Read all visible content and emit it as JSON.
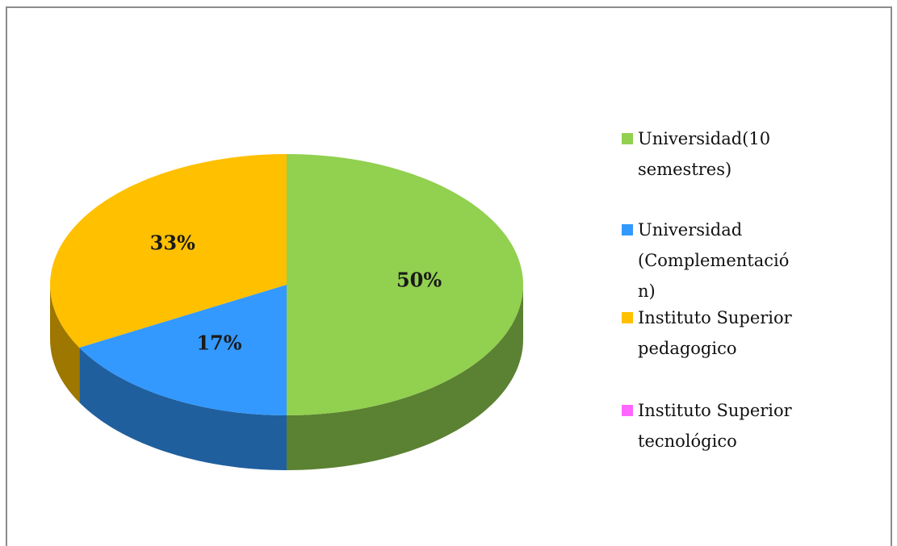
{
  "chart_data": {
    "type": "pie3d",
    "categories": [
      "Universidad(10 semestres)",
      "Universidad (Complementación)",
      "Instituto Superior pedagogico",
      "Instituto Superior tecnológico"
    ],
    "values": [
      50,
      17,
      33,
      0
    ],
    "value_labels": [
      "50%",
      "17%",
      "33%",
      null
    ],
    "colors": [
      "#92d050",
      "#3399ff",
      "#ffc000",
      "#ff66ff"
    ],
    "legend": "right"
  }
}
